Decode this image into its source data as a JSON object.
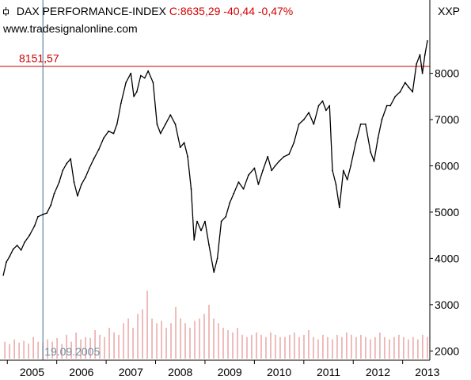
{
  "header": {
    "instrument_title": "DAX PERFORMANCE-INDEX",
    "quote": "C:8635,29 -40,44 -0,47%",
    "website": "www.tradesignalonline.com",
    "symbol": "XXP",
    "chart_icon": "candlestick-icon"
  },
  "colors": {
    "price_line": "#000000",
    "horizontal_line": "#cc0000",
    "horizontal_label": "#cc0000",
    "vertical_line": "#3f6f8f",
    "vertical_label": "#6f8f9f",
    "volume": "#e8a0a0",
    "quote_text": "#d40000",
    "axis": "#000000"
  },
  "chart_data": {
    "type": "line",
    "title": "DAX PERFORMANCE-INDEX",
    "xlabel": "",
    "ylabel": "",
    "x_ticks": [
      "2005",
      "2006",
      "2007",
      "2008",
      "2009",
      "2010",
      "2011",
      "2012",
      "2013"
    ],
    "y_ticks": [
      2000,
      3000,
      4000,
      5000,
      6000,
      7000,
      8000
    ],
    "ylim": [
      1800,
      8900
    ],
    "xlim": [
      2004.9,
      2013.55
    ],
    "grid": false,
    "horizontal_line": {
      "value": 8151.57,
      "label": "8151,57"
    },
    "vertical_line": {
      "x": 2005.72,
      "label": "19.09.2005"
    },
    "series": [
      {
        "values": [
          [
            2004.92,
            3640
          ],
          [
            2004.98,
            3920
          ],
          [
            2005.05,
            4050
          ],
          [
            2005.12,
            4200
          ],
          [
            2005.2,
            4280
          ],
          [
            2005.28,
            4180
          ],
          [
            2005.35,
            4350
          ],
          [
            2005.45,
            4500
          ],
          [
            2005.55,
            4700
          ],
          [
            2005.62,
            4900
          ],
          [
            2005.72,
            4950
          ],
          [
            2005.8,
            4980
          ],
          [
            2005.88,
            5150
          ],
          [
            2005.95,
            5400
          ],
          [
            2006.05,
            5650
          ],
          [
            2006.12,
            5900
          ],
          [
            2006.2,
            6050
          ],
          [
            2006.28,
            6150
          ],
          [
            2006.35,
            5650
          ],
          [
            2006.42,
            5350
          ],
          [
            2006.5,
            5600
          ],
          [
            2006.58,
            5750
          ],
          [
            2006.66,
            5950
          ],
          [
            2006.75,
            6150
          ],
          [
            2006.85,
            6350
          ],
          [
            2006.95,
            6600
          ],
          [
            2007.05,
            6750
          ],
          [
            2007.15,
            6700
          ],
          [
            2007.22,
            6900
          ],
          [
            2007.3,
            7350
          ],
          [
            2007.4,
            7800
          ],
          [
            2007.5,
            8000
          ],
          [
            2007.56,
            7500
          ],
          [
            2007.62,
            7600
          ],
          [
            2007.7,
            7950
          ],
          [
            2007.78,
            7900
          ],
          [
            2007.85,
            8050
          ],
          [
            2007.95,
            7800
          ],
          [
            2008.03,
            6900
          ],
          [
            2008.1,
            6700
          ],
          [
            2008.2,
            6900
          ],
          [
            2008.3,
            7100
          ],
          [
            2008.4,
            6900
          ],
          [
            2008.5,
            6400
          ],
          [
            2008.58,
            6500
          ],
          [
            2008.65,
            6200
          ],
          [
            2008.72,
            5500
          ],
          [
            2008.78,
            4400
          ],
          [
            2008.84,
            4800
          ],
          [
            2008.92,
            4600
          ],
          [
            2009.0,
            4800
          ],
          [
            2009.08,
            4300
          ],
          [
            2009.18,
            3700
          ],
          [
            2009.25,
            4000
          ],
          [
            2009.33,
            4800
          ],
          [
            2009.42,
            4900
          ],
          [
            2009.5,
            5200
          ],
          [
            2009.58,
            5400
          ],
          [
            2009.68,
            5650
          ],
          [
            2009.78,
            5500
          ],
          [
            2009.88,
            5800
          ],
          [
            2010.0,
            5950
          ],
          [
            2010.08,
            5600
          ],
          [
            2010.17,
            5900
          ],
          [
            2010.27,
            6200
          ],
          [
            2010.35,
            5900
          ],
          [
            2010.42,
            6000
          ],
          [
            2010.5,
            6100
          ],
          [
            2010.6,
            6200
          ],
          [
            2010.7,
            6250
          ],
          [
            2010.8,
            6500
          ],
          [
            2010.9,
            6900
          ],
          [
            2011.0,
            7000
          ],
          [
            2011.1,
            7150
          ],
          [
            2011.2,
            6900
          ],
          [
            2011.3,
            7300
          ],
          [
            2011.38,
            7400
          ],
          [
            2011.45,
            7200
          ],
          [
            2011.52,
            7300
          ],
          [
            2011.58,
            5900
          ],
          [
            2011.65,
            5600
          ],
          [
            2011.72,
            5100
          ],
          [
            2011.8,
            5900
          ],
          [
            2011.88,
            5700
          ],
          [
            2011.95,
            6000
          ],
          [
            2012.05,
            6500
          ],
          [
            2012.15,
            6900
          ],
          [
            2012.25,
            6900
          ],
          [
            2012.35,
            6300
          ],
          [
            2012.42,
            6100
          ],
          [
            2012.5,
            6600
          ],
          [
            2012.58,
            7000
          ],
          [
            2012.68,
            7300
          ],
          [
            2012.75,
            7300
          ],
          [
            2012.85,
            7500
          ],
          [
            2012.95,
            7600
          ],
          [
            2013.05,
            7800
          ],
          [
            2013.12,
            7700
          ],
          [
            2013.2,
            7600
          ],
          [
            2013.28,
            8200
          ],
          [
            2013.35,
            8400
          ],
          [
            2013.4,
            8000
          ],
          [
            2013.45,
            8400
          ],
          [
            2013.5,
            8700
          ]
        ]
      }
    ],
    "volume_series": {
      "x_range": [
        2004.95,
        2013.5
      ],
      "values": [
        2200,
        2150,
        2250,
        2180,
        2220,
        2160,
        2300,
        2200,
        2180,
        2250,
        2200,
        2280,
        2150,
        2350,
        2200,
        2400,
        2250,
        2300,
        2280,
        2450,
        2350,
        2300,
        2500,
        2400,
        2350,
        2600,
        2700,
        2500,
        2800,
        2900,
        3300,
        2700,
        2600,
        2650,
        2500,
        2600,
        2950,
        2700,
        2600,
        2500,
        2650,
        2700,
        2800,
        3000,
        2700,
        2600,
        2500,
        2450,
        2400,
        2500,
        2350,
        2300,
        2350,
        2400,
        2350,
        2300,
        2400,
        2350,
        2300,
        2300,
        2350,
        2400,
        2300,
        2350,
        2450,
        2300,
        2250,
        2350,
        2300,
        2250,
        2350,
        2300,
        2400,
        2350,
        2300,
        2350,
        2300,
        2250,
        2300,
        2400,
        2300,
        2250,
        2300,
        2350,
        2300,
        2250,
        2300,
        2250,
        2350,
        2300
      ]
    }
  }
}
